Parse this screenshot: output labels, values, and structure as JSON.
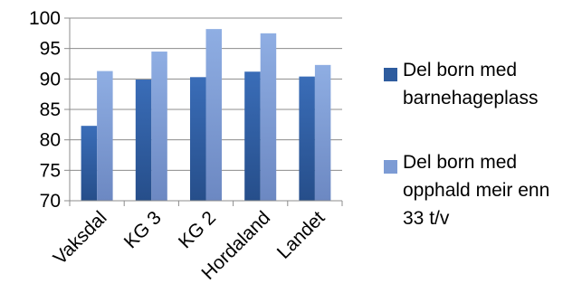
{
  "chart_data": {
    "type": "bar",
    "categories": [
      "Vaksdal",
      "KG 3",
      "KG 2",
      "Hordaland",
      "Landet"
    ],
    "series": [
      {
        "name": "Del born med barnehageplass",
        "values": [
          82.3,
          89.9,
          90.3,
          91.2,
          90.4
        ],
        "color": "#2E5C9E"
      },
      {
        "name": "Del born med opphald meir enn 33 t/v",
        "values": [
          91.3,
          94.5,
          98.2,
          97.5,
          92.3
        ],
        "color": "#7C9BD4"
      }
    ],
    "ylim": [
      70,
      100
    ],
    "yticks": [
      70,
      75,
      80,
      85,
      90,
      95,
      100
    ],
    "grid": true,
    "legend_position": "right",
    "title": "",
    "xlabel": "",
    "ylabel": ""
  }
}
